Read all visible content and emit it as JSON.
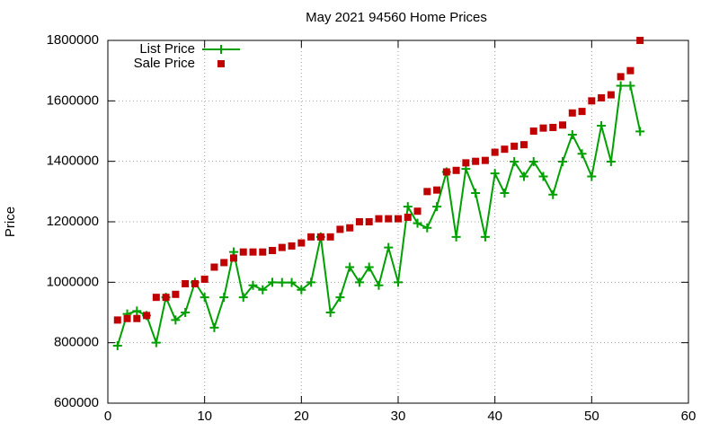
{
  "chart_data": {
    "type": "line",
    "title": "May 2021 94560 Home Prices",
    "y_label": "Price",
    "x": [
      1,
      2,
      3,
      4,
      5,
      6,
      7,
      8,
      9,
      10,
      11,
      12,
      13,
      14,
      15,
      16,
      17,
      18,
      19,
      20,
      21,
      22,
      23,
      24,
      25,
      26,
      27,
      28,
      29,
      30,
      31,
      32,
      33,
      34,
      35,
      36,
      37,
      38,
      39,
      40,
      41,
      42,
      43,
      44,
      45,
      46,
      47,
      48,
      49,
      50,
      51,
      52,
      53,
      54,
      55
    ],
    "series": [
      {
        "name": "List Price",
        "color": "#00a000",
        "mode": "lines+markers",
        "marker": "plus",
        "values": [
          790000,
          895000,
          905000,
          890000,
          800000,
          950000,
          875000,
          900000,
          1000000,
          950000,
          850000,
          950000,
          1100000,
          950000,
          990000,
          975000,
          1000000,
          999000,
          999000,
          975000,
          1000000,
          1150000,
          900000,
          950000,
          1050000,
          1000000,
          1050000,
          990000,
          1115000,
          1000000,
          1250000,
          1195000,
          1180000,
          1250000,
          1365000,
          1150000,
          1375000,
          1295000,
          1150000,
          1360000,
          1295000,
          1399000,
          1350000,
          1399000,
          1350000,
          1290000,
          1399000,
          1488000,
          1425000,
          1350000,
          1518000,
          1399000,
          1650000,
          1650000,
          1499000
        ]
      },
      {
        "name": "Sale Price",
        "color": "#c00000",
        "mode": "markers",
        "marker": "square",
        "values": [
          875000,
          880000,
          880000,
          890000,
          950000,
          950000,
          960000,
          995000,
          995000,
          1010000,
          1050000,
          1065000,
          1080000,
          1100000,
          1100000,
          1100000,
          1105000,
          1115000,
          1120000,
          1130000,
          1150000,
          1150000,
          1150000,
          1175000,
          1180000,
          1200000,
          1200000,
          1210000,
          1210000,
          1210000,
          1215000,
          1235000,
          1300000,
          1305000,
          1365000,
          1370000,
          1395000,
          1400000,
          1403000,
          1430000,
          1440000,
          1450000,
          1455000,
          1500000,
          1510000,
          1512000,
          1520000,
          1560000,
          1565000,
          1600000,
          1610000,
          1620000,
          1680000,
          1700000,
          1800000
        ]
      }
    ],
    "xlim": [
      0,
      60
    ],
    "xticks": [
      0,
      10,
      20,
      30,
      40,
      50,
      60
    ],
    "ylim": [
      600000,
      1800000
    ],
    "yticks": [
      600000,
      800000,
      1000000,
      1200000,
      1400000,
      1600000,
      1800000
    ],
    "grid": true,
    "legend": "top-left"
  }
}
